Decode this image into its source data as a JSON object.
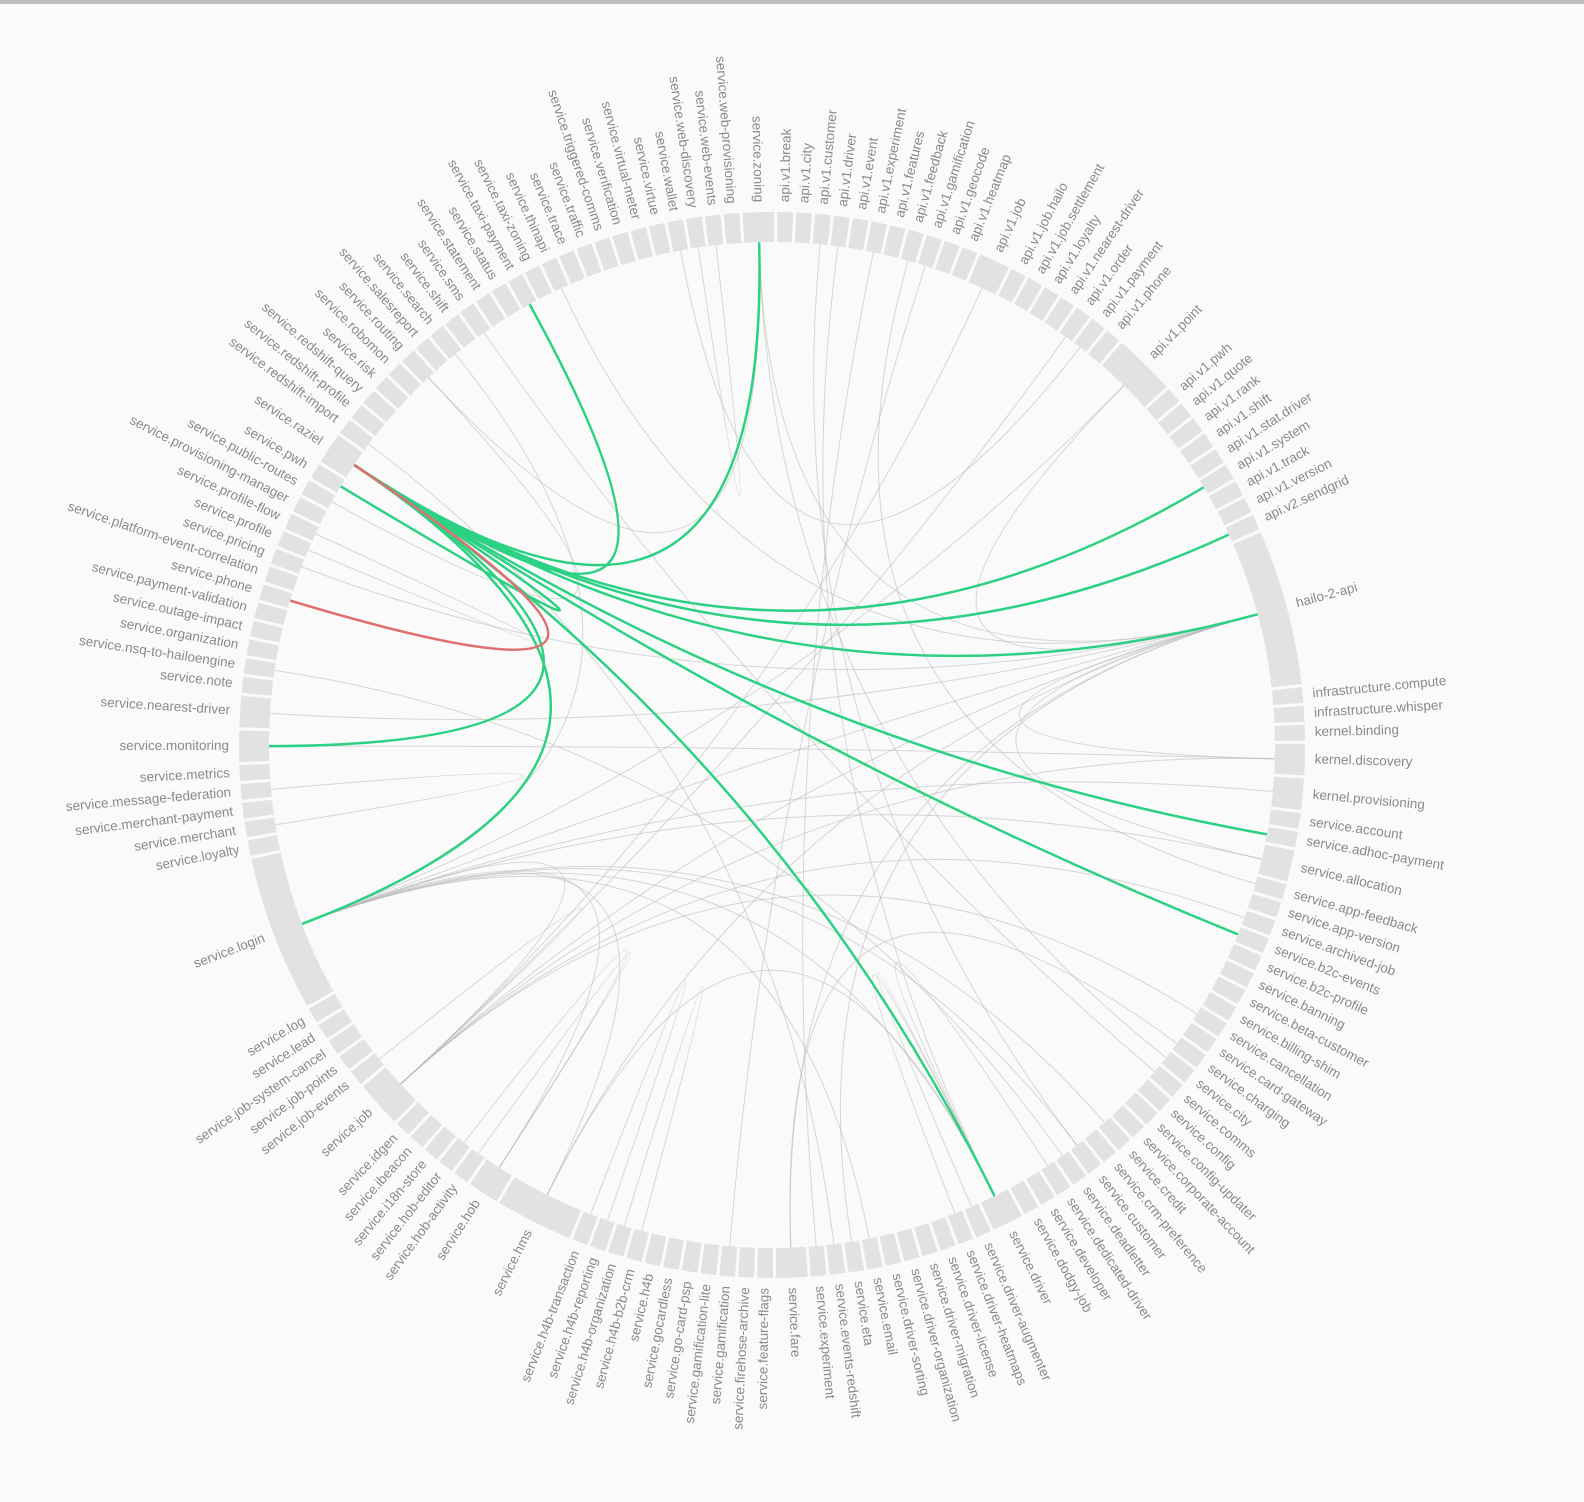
{
  "chart_data": {
    "type": "chord",
    "categories": [
      "api.v1.break",
      "api.v1.city",
      "api.v1.customer",
      "api.v1.driver",
      "api.v1.event",
      "api.v1.experiment",
      "api.v1.features",
      "api.v1.feedback",
      "api.v1.gamification",
      "api.v1.geocode",
      "api.v1.heatmap",
      "api.v1.job",
      "api.v1.job.hailo",
      "api.v1.job.settlement",
      "api.v1.loyalty",
      "api.v1.nearest-driver",
      "api.v1.order",
      "api.v1.payment",
      "api.v1.phone",
      "api.v1.point",
      "api.v1.pwh",
      "api.v1.quote",
      "api.v1.rank",
      "api.v1.shift",
      "api.v1.stat.driver",
      "api.v1.system",
      "api.v1.track",
      "api.v1.version",
      "api.v2.sendgrid",
      "hailo-2-api",
      "infrastructure.compute",
      "infrastructure.whisper",
      "kernel.binding",
      "kernel.discovery",
      "kernel.provisioning",
      "service.account",
      "service.adhoc-payment",
      "service.allocation",
      "service.app-feedback",
      "service.app-version",
      "service.archived-job",
      "service.b2c-events",
      "service.b2c-profile",
      "service.banning",
      "service.beta-customer",
      "service.billing-shim",
      "service.cancellation",
      "service.card-gateway",
      "service.charging",
      "service.city",
      "service.comms",
      "service.config",
      "service.config-updater",
      "service.corporate-account",
      "service.credit",
      "service.crm-preference",
      "service.customer",
      "service.deadletter",
      "service.dedicated-driver",
      "service.developer",
      "service.dodgy-job",
      "service.driver",
      "service.driver-augmenter",
      "service.driver-heatmaps",
      "service.driver-license",
      "service.driver-migration",
      "service.driver-organization",
      "service.driver-sorting",
      "service.email",
      "service.eta",
      "service.events-redshift",
      "service.experiment",
      "service.fare",
      "service.feature-flags",
      "service.firehose-archive",
      "service.gamification",
      "service.gamification-lite",
      "service.go-card-psp",
      "service.gocardless",
      "service.h4b",
      "service.h4b-b2b-crm",
      "service.h4b-organization",
      "service.h4b-reporting",
      "service.h4b-transaction",
      "service.hms",
      "service.hob",
      "service.hob-activity",
      "service.hob-editor",
      "service.i18n-store",
      "service.ibeacon",
      "service.idgen",
      "service.job",
      "service.job-events",
      "service.job-points",
      "service.job-system-cancel",
      "service.lead",
      "service.log",
      "service.login",
      "service.loyalty",
      "service.merchant",
      "service.merchant-payment",
      "service.message-federation",
      "service.metrics",
      "service.monitoring",
      "service.nearest-driver",
      "service.note",
      "service.nsq-to-hailoengine",
      "service.organization",
      "service.outage-impact",
      "service.payment-validation",
      "service.phone",
      "service.platform-event-correlation",
      "service.pricing",
      "service.profile",
      "service.profile-flow",
      "service.provisioning-manager",
      "service.public-routes",
      "service.pwh",
      "service.raziel",
      "service.redshift-import",
      "service.redshift-profile",
      "service.redshift-query",
      "service.risk",
      "service.robomon",
      "service.routing",
      "service.salesreport",
      "service.search",
      "service.shift",
      "service.sms",
      "service.statement",
      "service.status",
      "service.taxi-payment",
      "service.taxi-zoning",
      "service.thinapi",
      "service.trace",
      "service.traffic",
      "service.triggered-comms",
      "service.verification",
      "service.virtual-meter",
      "service.virtue",
      "service.wallet",
      "service.web-discovery",
      "service.web-events",
      "service.web-provisioning",
      "service.zoning"
    ],
    "values": [
      1,
      1,
      1,
      1,
      1,
      1,
      1,
      1,
      1,
      1,
      1,
      2,
      1,
      1,
      1,
      1,
      1,
      1,
      1,
      4,
      1,
      1,
      1,
      1,
      1,
      1,
      1,
      1,
      1,
      10,
      1,
      1,
      1,
      2,
      2,
      1,
      1,
      2,
      1,
      1,
      1,
      1,
      1,
      1,
      1,
      1,
      1,
      1,
      1,
      1,
      1,
      1,
      1,
      1,
      1,
      1,
      1,
      1,
      1,
      1,
      1,
      2,
      1,
      1,
      1,
      1,
      1,
      1,
      1,
      1,
      1,
      1,
      2,
      1,
      1,
      1,
      1,
      1,
      1,
      1,
      1,
      1,
      1,
      1,
      5,
      2,
      1,
      1,
      1,
      1,
      1,
      3,
      1,
      1,
      1,
      1,
      1,
      10,
      1,
      1,
      1,
      1,
      1,
      2,
      2,
      1,
      1,
      1,
      1,
      1,
      1,
      1,
      1,
      1,
      1,
      1,
      1,
      1,
      2,
      1,
      1,
      1,
      1,
      1,
      1,
      1,
      1,
      1,
      1,
      1,
      1,
      1,
      1,
      1,
      1,
      1,
      1,
      1,
      1,
      1,
      1,
      1,
      1,
      1,
      2
    ],
    "arc_color": "#e2e2e2",
    "links": [
      [
        29,
        97
      ],
      [
        29,
        84
      ],
      [
        19,
        29
      ],
      [
        97,
        84
      ],
      [
        97,
        91
      ],
      [
        97,
        37
      ],
      [
        29,
        37
      ],
      [
        29,
        33
      ],
      [
        91,
        29
      ],
      [
        84,
        61
      ],
      [
        85,
        97
      ],
      [
        72,
        29
      ],
      [
        144,
        29
      ],
      [
        97,
        61
      ],
      [
        104,
        29
      ],
      [
        103,
        33
      ],
      [
        33,
        91
      ],
      [
        34,
        97
      ],
      [
        19,
        97
      ],
      [
        2,
        56
      ],
      [
        3,
        61
      ],
      [
        11,
        91
      ],
      [
        69,
        29
      ],
      [
        50,
        128
      ],
      [
        68,
        97
      ],
      [
        112,
        29
      ],
      [
        124,
        144
      ],
      [
        126,
        97
      ],
      [
        133,
        29
      ],
      [
        54,
        97
      ],
      [
        49,
        144
      ],
      [
        46,
        91
      ],
      [
        5,
        71
      ],
      [
        8,
        75
      ],
      [
        7,
        38
      ],
      [
        16,
        91
      ],
      [
        40,
        91
      ],
      [
        56,
        97
      ],
      [
        61,
        62
      ],
      [
        63,
        61
      ],
      [
        80,
        81
      ],
      [
        83,
        82
      ],
      [
        86,
        85
      ],
      [
        87,
        85
      ],
      [
        92,
        91
      ],
      [
        101,
        99
      ],
      [
        113,
        114
      ],
      [
        116,
        124
      ],
      [
        140,
        17
      ],
      [
        142,
        141
      ],
      [
        57,
        106
      ],
      [
        70,
        119
      ],
      [
        48,
        72
      ],
      [
        58,
        61
      ]
    ],
    "link_color": "#b8b8b8",
    "highlight_links": [
      {
        "source": 118,
        "target": 144,
        "color": "#2dd184"
      },
      {
        "source": 118,
        "target": 25,
        "color": "#2dd184"
      },
      {
        "source": 118,
        "target": 28,
        "color": "#2dd184"
      },
      {
        "source": 118,
        "target": 29,
        "color": "#2dd184"
      },
      {
        "source": 118,
        "target": 36,
        "color": "#2dd184"
      },
      {
        "source": 118,
        "target": 41,
        "color": "#2dd184"
      },
      {
        "source": 118,
        "target": 61,
        "color": "#2dd184"
      },
      {
        "source": 118,
        "target": 97,
        "color": "#2dd184"
      },
      {
        "source": 118,
        "target": 103,
        "color": "#2dd184"
      },
      {
        "source": 118,
        "target": 117,
        "color": "#2dd184"
      },
      {
        "source": 118,
        "target": 131,
        "color": "#2dd184"
      },
      {
        "source": 118,
        "target": 110,
        "color": "#e07070"
      }
    ]
  }
}
